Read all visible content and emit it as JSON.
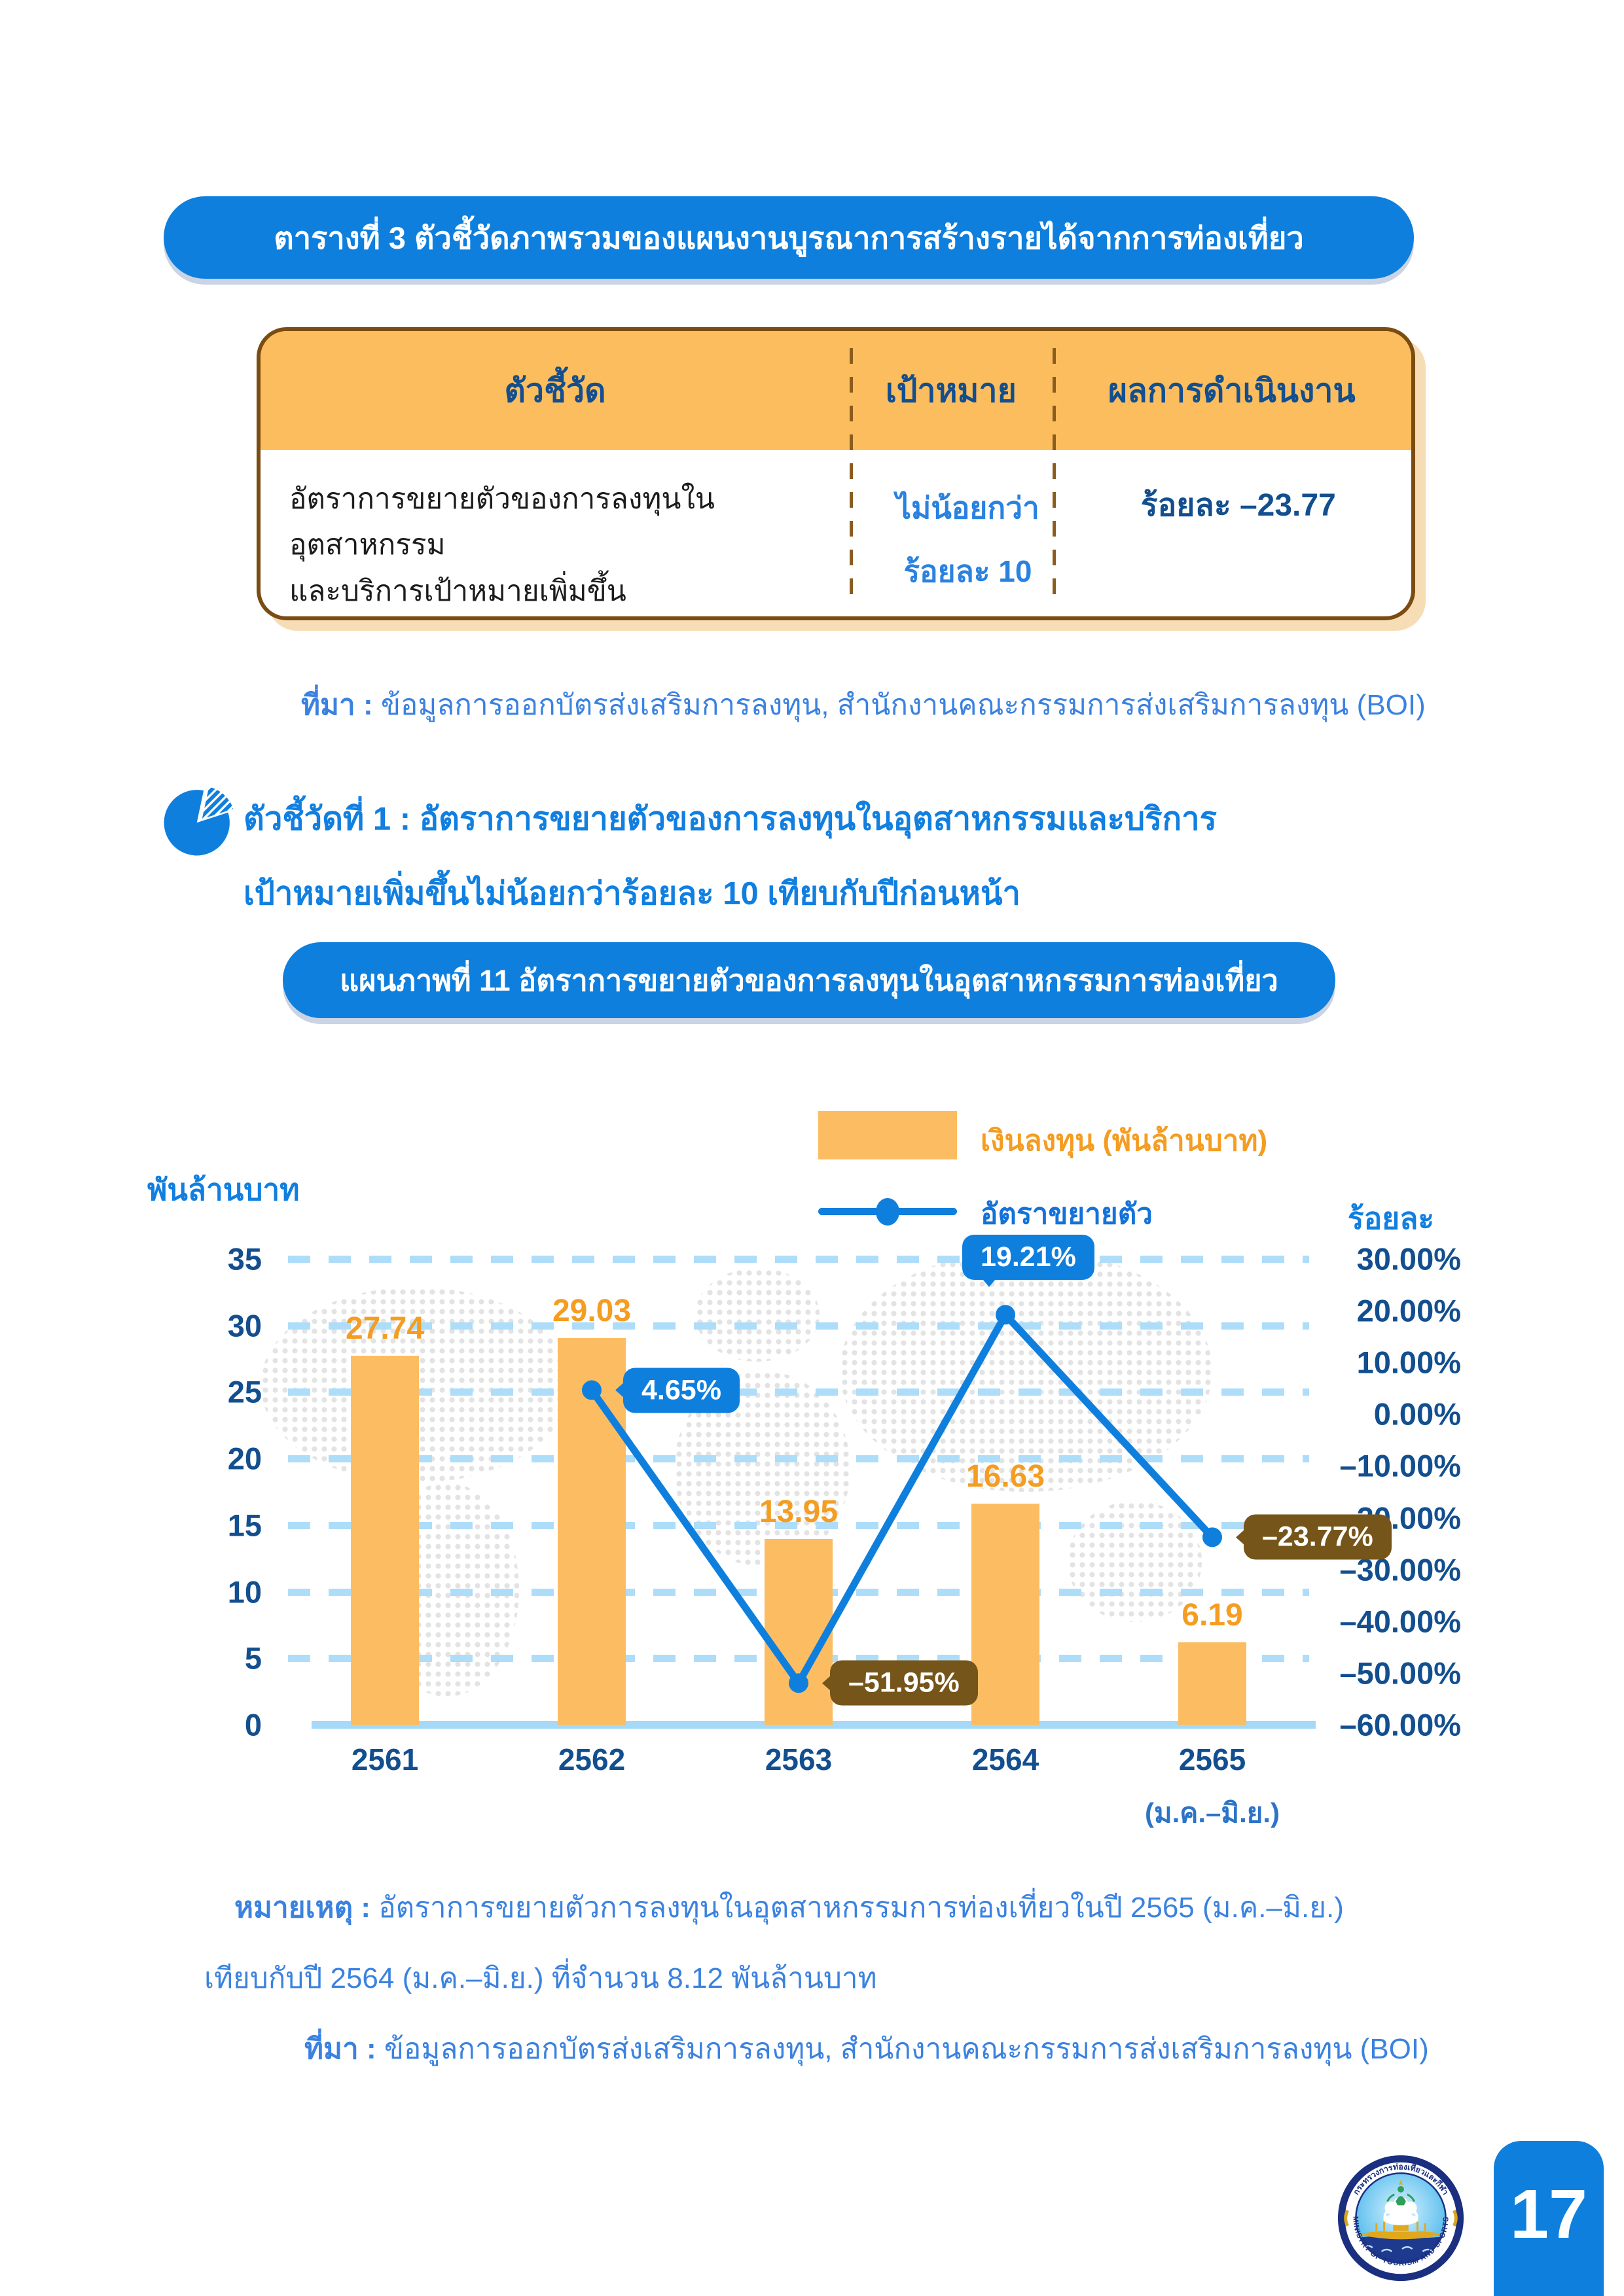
{
  "table_banner": "ตารางที่ 3 ตัวชี้วัดภาพรวมของแผนงานบูรณาการสร้างรายได้จากการท่องเที่ยว",
  "table": {
    "headers": [
      "ตัวชี้วัด",
      "เป้าหมาย",
      "ผลการดำเนินงาน"
    ],
    "row": {
      "indicator_line1": "อัตราการขยายตัวของการลงทุนในอุตสาหกรรม",
      "indicator_line2": "และบริการเป้าหมายเพิ่มขึ้น",
      "target_line1": "ไม่น้อยกว่า",
      "target_line2": "ร้อยละ 10",
      "result": "ร้อยละ –23.77"
    }
  },
  "source": {
    "label": "ที่มา :",
    "text": "ข้อมูลการออกบัตรส่งเสริมการลงทุน, สำนักงานคณะกรรมการส่งเสริมการลงทุน (BOI)"
  },
  "indicator_heading": {
    "line1": "ตัวชี้วัดที่ 1 : อัตราการขยายตัวของการลงทุนในอุตสาหกรรมและบริการ",
    "line2": "เป้าหมายเพิ่มขึ้นไม่น้อยกว่าร้อยละ 10 เทียบกับปีก่อนหน้า"
  },
  "chart_banner": "แผนภาพที่ 11 อัตราการขยายตัวของการลงทุนในอุตสาหกรรมการท่องเที่ยว",
  "chart_data": {
    "type": "bar+line",
    "categories": [
      "2561",
      "2562",
      "2563",
      "2564",
      "2565"
    ],
    "category_note": "(ม.ค.–มิ.ย.)",
    "series": [
      {
        "name": "เงินลงทุน (พันล้านบาท)",
        "type": "bar",
        "values": [
          27.74,
          29.03,
          13.95,
          16.63,
          6.19
        ]
      },
      {
        "name": "อัตราขยายตัว",
        "type": "line",
        "unit": "%",
        "values": [
          null,
          4.65,
          -51.95,
          19.21,
          -23.77
        ]
      }
    ],
    "bar_labels": [
      "27.74",
      "29.03",
      "13.95",
      "16.63",
      "6.19"
    ],
    "line_points": [
      {
        "x": "2562",
        "value": 4.65,
        "label": "4.65%",
        "style": "blue",
        "placement": "right"
      },
      {
        "x": "2563",
        "value": -51.95,
        "label": "–51.95%",
        "style": "brown",
        "placement": "right"
      },
      {
        "x": "2564",
        "value": 19.21,
        "label": "19.21%",
        "style": "blue",
        "placement": "top"
      },
      {
        "x": "2565",
        "value": -23.77,
        "label": "–23.77%",
        "style": "brown",
        "placement": "right"
      }
    ],
    "left_axis": {
      "title": "พันล้านบาท",
      "ticks": [
        35,
        30,
        25,
        20,
        15,
        10,
        5,
        0
      ],
      "min": 0,
      "max": 35
    },
    "right_axis": {
      "title": "ร้อยละ",
      "min": -60,
      "max": 30,
      "ticks": [
        "30.00%",
        "20.00%",
        "10.00%",
        "0.00%",
        "–10.00%",
        "–20.00%",
        "–30.00%",
        "–40.00%",
        "–50.00%",
        "–60.00%"
      ]
    },
    "grid": "dashed horizontal",
    "legend_position": "top-right"
  },
  "note": {
    "label": "หมายเหตุ :",
    "line1": "อัตราการขยายตัวการลงทุนในอุตสาหกรรมการท่องเที่ยวในปี 2565 (ม.ค.–มิ.ย.)",
    "line2": "เทียบกับปี 2564 (ม.ค.–มิ.ย.) ที่จำนวน 8.12 พันล้านบาท"
  },
  "footer": {
    "page_number": "17",
    "seal_thai": "กระทรวงการท่องเที่ยวและกีฬา",
    "seal_english": "MINISTRY OF TOURISM AND SPORTS"
  },
  "colors": {
    "banner_blue": "#0f7fde",
    "navy_text": "#134f8f",
    "body_blue_text": "#3b82e0",
    "bar_orange": "#fcbd62",
    "bar_label_orange": "#f49d22",
    "table_header_orange": "#fcbd5e",
    "table_border_brown": "#7b4c12",
    "bubble_brown": "#75551a",
    "gridline_blue": "#aeddf9"
  }
}
